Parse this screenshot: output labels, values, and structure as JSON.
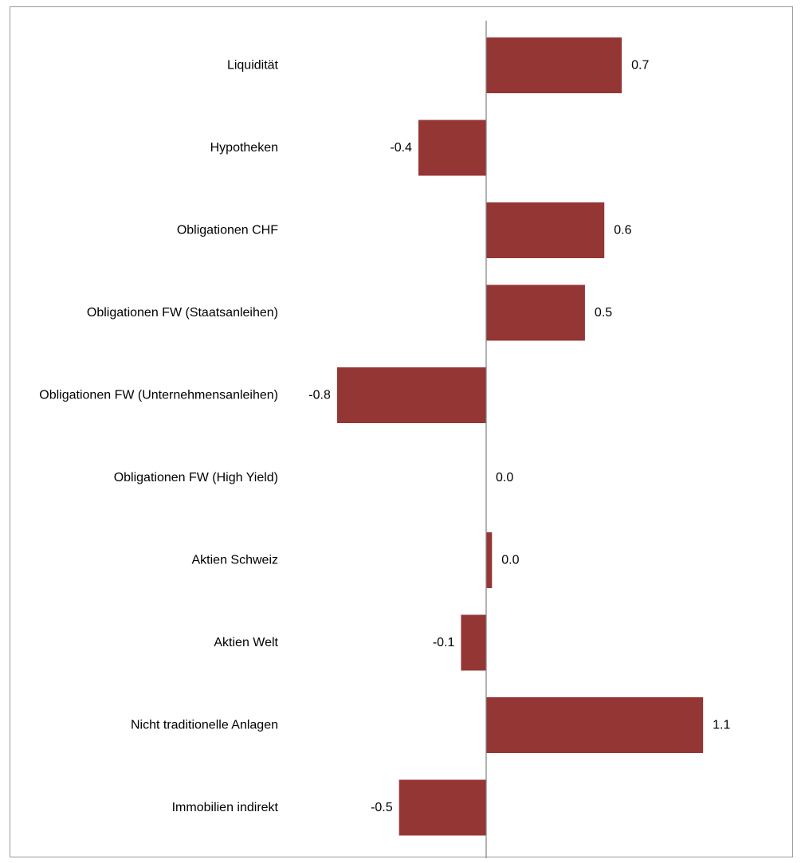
{
  "chart_data": {
    "type": "bar",
    "orientation": "horizontal",
    "categories": [
      "Liquidität",
      "Hypotheken",
      "Obligationen CHF",
      "Obligationen FW (Staatsanleihen)",
      "Obligationen FW (Unternehmensanleihen)",
      "Obligationen FW (High Yield)",
      "Aktien Schweiz",
      "Aktien Welt",
      "Nicht traditionelle Anlagen",
      "Immobilien indirekt"
    ],
    "values": [
      0.7,
      -0.35,
      0.61,
      0.51,
      -0.77,
      0.0,
      0.03,
      -0.13,
      1.12,
      -0.45
    ],
    "value_labels": [
      "0.7",
      "-0.4",
      "0.6",
      "0.5",
      "-0.8",
      "0.0",
      "0.0",
      "-0.1",
      "1.1",
      "-0.5"
    ],
    "xlim": [
      -0.8,
      1.2
    ],
    "bar_color": "#943634",
    "axis_color": "#808080",
    "grid": false,
    "legend": "none"
  }
}
